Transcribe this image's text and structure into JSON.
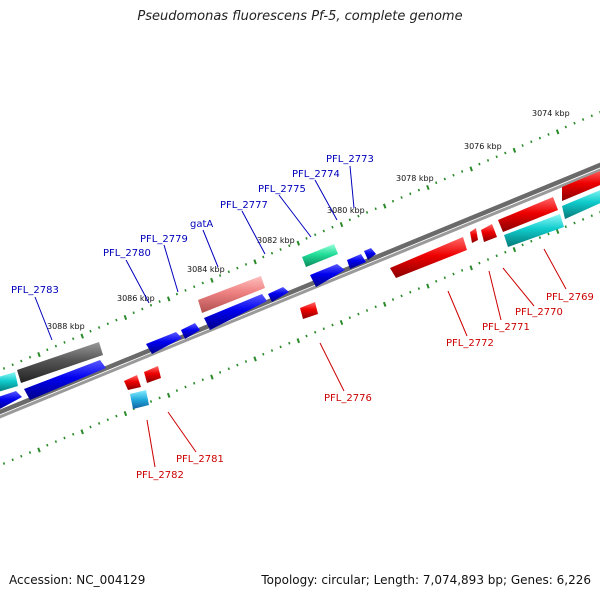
{
  "title": "Pseudomonas fluorescens Pf-5, complete genome",
  "accession": "Accession: NC_004129",
  "summary": "Topology: circular; Length: 7,074,893 bp; Genes: 6,226",
  "colors": {
    "forward_label": "#0000bb",
    "reverse_label": "#cc0000",
    "forward_gene": "#0000ee",
    "reverse_gene": "#ee0000",
    "tick": "#2a8a2a",
    "backbone": "#777777"
  },
  "kbp_labels": [
    "3074 kbp",
    "3076 kbp",
    "3078 kbp",
    "3080 kbp",
    "3082 kbp",
    "3084 kbp",
    "3086 kbp",
    "3088 kbp"
  ],
  "forward_gene_labels": [
    "PFL_2773",
    "PFL_2774",
    "PFL_2775",
    "PFL_2777",
    "gatA",
    "PFL_2779",
    "PFL_2780",
    "PFL_2783"
  ],
  "reverse_gene_labels": [
    "PFL_2769",
    "PFL_2770",
    "PFL_2771",
    "PFL_2772",
    "PFL_2776",
    "PFL_2781",
    "PFL_2782"
  ]
}
